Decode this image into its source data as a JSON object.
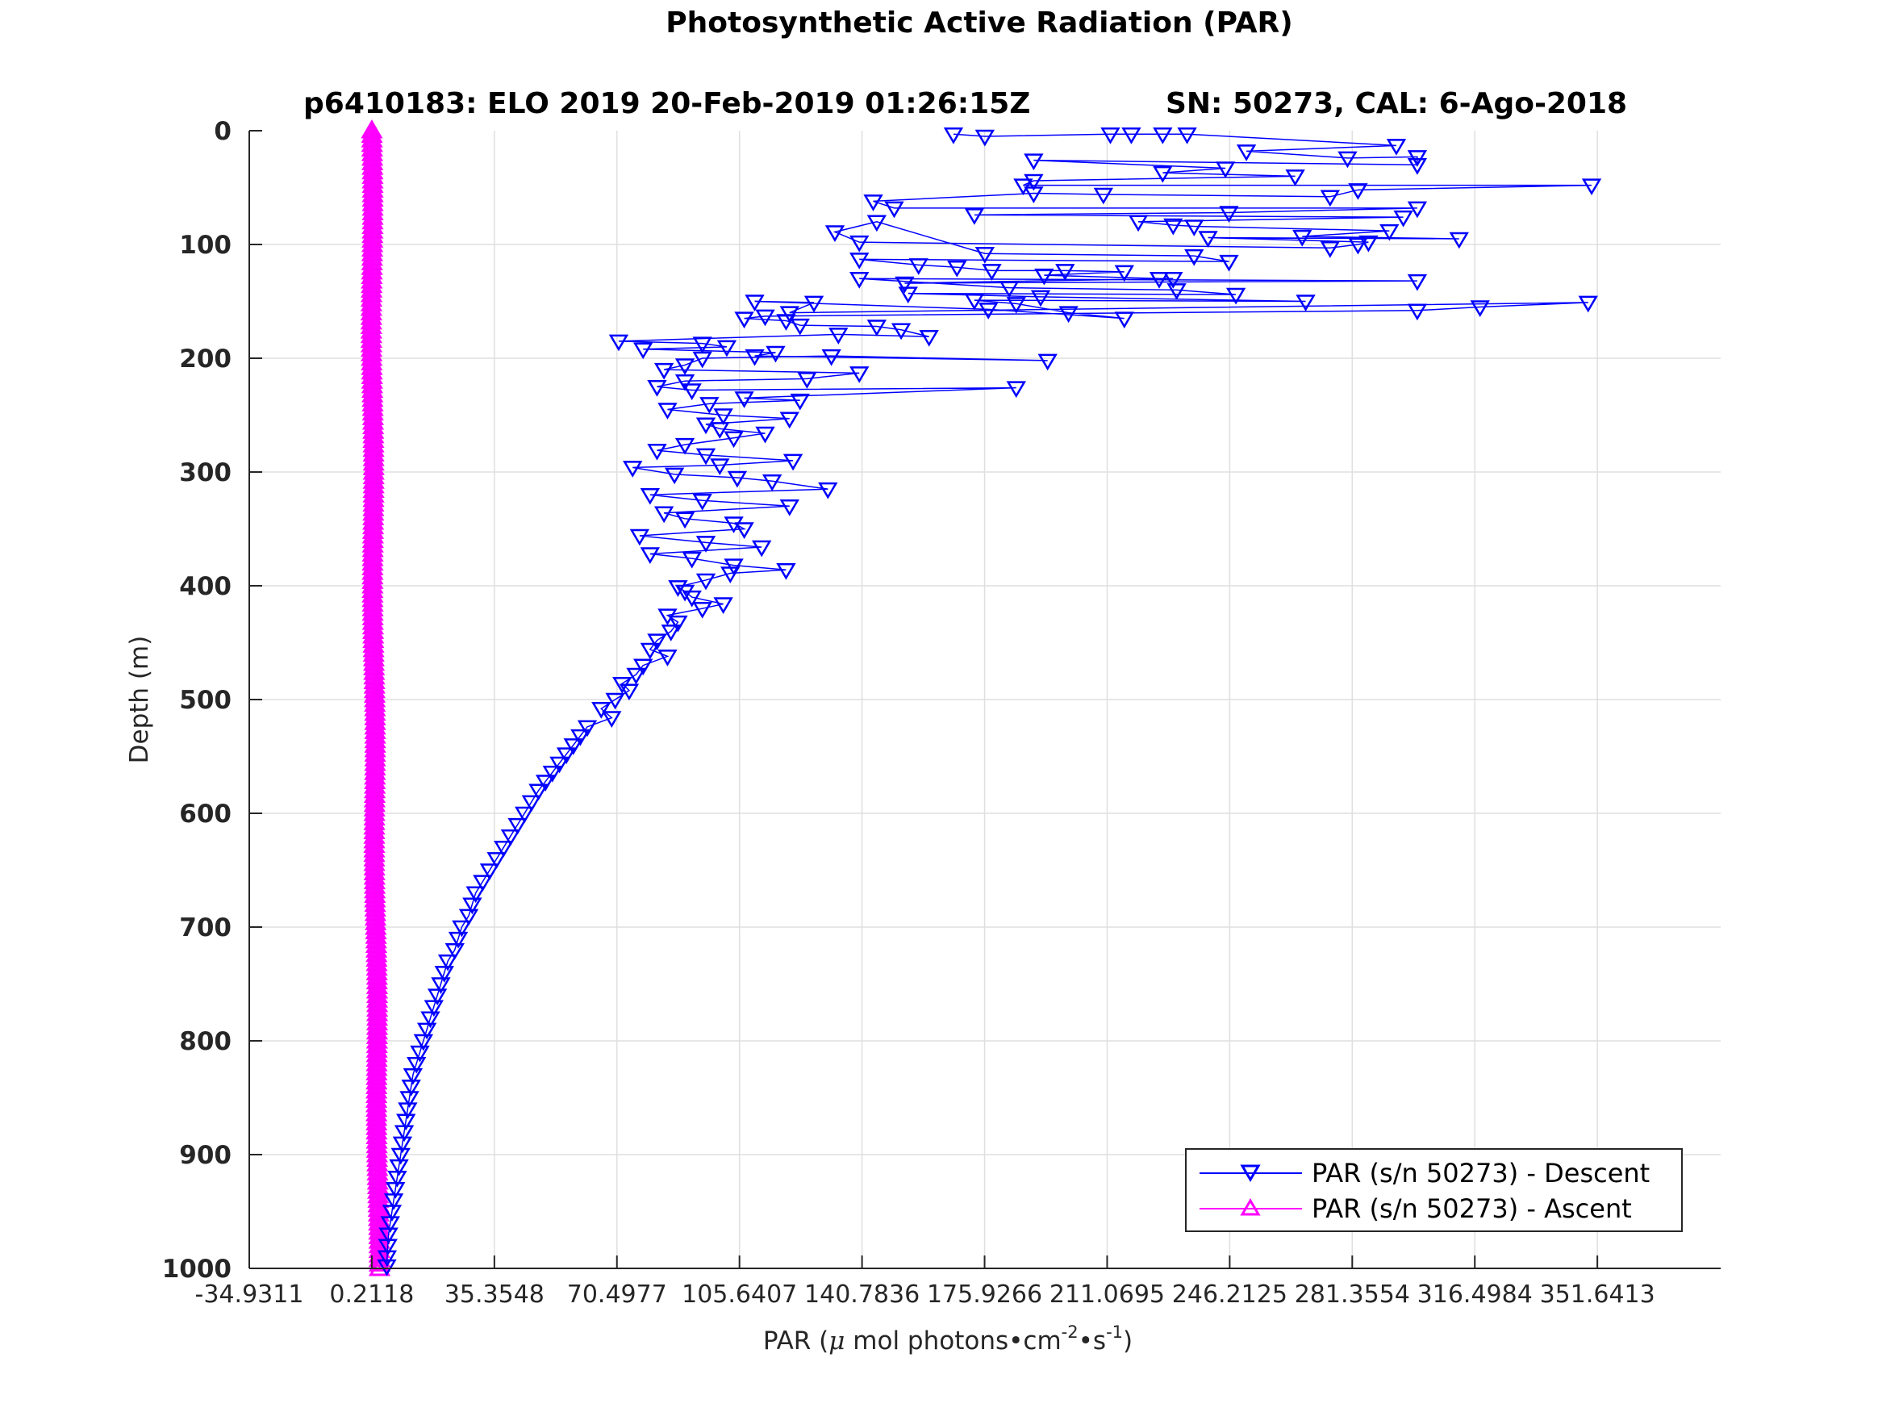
{
  "chart_data": {
    "type": "scatter",
    "title": "Photosynthetic Active Radiation (PAR)",
    "subtitle_left": "p6410183: ELO 2019 20-Feb-2019 01:26:15Z",
    "subtitle_right": "SN: 50273, CAL: 6-Ago-2018",
    "xlabel": "PAR (",
    "xlabel_mu": "μ",
    "xlabel_mid": " mol photons•cm",
    "xlabel_exp1": "-2",
    "xlabel_mid2": "•s",
    "xlabel_exp2": "-1",
    "xlabel_end": ")",
    "ylabel": "Depth (m)",
    "xlim": [
      -34.9311,
      387.0
    ],
    "ylim": [
      0,
      1000
    ],
    "y_reversed": true,
    "grid": true,
    "legend_position": "bottom-right",
    "xticks": [
      -34.9311,
      0.2118,
      35.3548,
      70.4977,
      105.6407,
      140.7836,
      175.9266,
      211.0695,
      246.2125,
      281.3554,
      316.4984,
      351.6413
    ],
    "xtick_labels": [
      "-34.9311",
      "0.2118",
      "35.3548",
      "70.4977",
      "105.6407",
      "140.7836",
      "175.9266",
      "211.0695",
      "246.2125",
      "281.3554",
      "316.4984",
      "351.6413"
    ],
    "yticks": [
      0,
      100,
      200,
      300,
      400,
      500,
      600,
      700,
      800,
      900,
      1000
    ],
    "ytick_labels": [
      "0",
      "100",
      "200",
      "300",
      "400",
      "500",
      "600",
      "700",
      "800",
      "900",
      "1000"
    ],
    "series": [
      {
        "name": "PAR (s/n 50273) - Descent",
        "color": "#0000ff",
        "marker": "triangle-down",
        "points": [
          [
            167,
            3
          ],
          [
            176,
            5
          ],
          [
            212,
            3
          ],
          [
            218,
            3
          ],
          [
            227,
            3
          ],
          [
            234,
            3
          ],
          [
            294,
            13
          ],
          [
            251,
            18
          ],
          [
            280,
            24
          ],
          [
            300,
            23
          ],
          [
            300,
            30
          ],
          [
            190,
            26
          ],
          [
            245,
            33
          ],
          [
            227,
            37
          ],
          [
            265,
            40
          ],
          [
            190,
            44
          ],
          [
            187,
            48
          ],
          [
            350,
            48
          ],
          [
            283,
            52
          ],
          [
            275,
            58
          ],
          [
            210,
            56
          ],
          [
            190,
            55
          ],
          [
            144,
            62
          ],
          [
            150,
            68
          ],
          [
            300,
            68
          ],
          [
            246,
            72
          ],
          [
            173,
            74
          ],
          [
            296,
            76
          ],
          [
            220,
            80
          ],
          [
            230,
            83
          ],
          [
            236,
            84
          ],
          [
            292,
            88
          ],
          [
            267,
            93
          ],
          [
            312,
            95
          ],
          [
            240,
            94
          ],
          [
            286,
            98
          ],
          [
            283,
            100
          ],
          [
            275,
            103
          ],
          [
            140,
            98
          ],
          [
            133,
            89
          ],
          [
            145,
            80
          ],
          [
            176,
            108
          ],
          [
            236,
            110
          ],
          [
            246,
            115
          ],
          [
            140,
            113
          ],
          [
            157,
            118
          ],
          [
            168,
            120
          ],
          [
            178,
            123
          ],
          [
            199,
            123
          ],
          [
            216,
            124
          ],
          [
            193,
            127
          ],
          [
            226,
            130
          ],
          [
            230,
            130
          ],
          [
            153,
            134
          ],
          [
            300,
            132
          ],
          [
            140,
            130
          ],
          [
            183,
            138
          ],
          [
            231,
            140
          ],
          [
            248,
            144
          ],
          [
            154,
            143
          ],
          [
            192,
            146
          ],
          [
            268,
            150
          ],
          [
            173,
            149
          ],
          [
            185,
            152
          ],
          [
            200,
            160
          ],
          [
            216,
            165
          ],
          [
            177,
            157
          ],
          [
            110,
            150
          ],
          [
            127,
            151
          ],
          [
            120,
            160
          ],
          [
            349,
            151
          ],
          [
            318,
            155
          ],
          [
            300,
            158
          ],
          [
            113,
            163
          ],
          [
            107,
            165
          ],
          [
            119,
            167
          ],
          [
            123,
            171
          ],
          [
            145,
            172
          ],
          [
            152,
            175
          ],
          [
            160,
            181
          ],
          [
            134,
            179
          ],
          [
            71,
            185
          ],
          [
            95,
            187
          ],
          [
            102,
            190
          ],
          [
            78,
            192
          ],
          [
            116,
            195
          ],
          [
            110,
            198
          ],
          [
            194,
            202
          ],
          [
            132,
            198
          ],
          [
            95,
            200
          ],
          [
            90,
            206
          ],
          [
            84,
            210
          ],
          [
            140,
            213
          ],
          [
            125,
            218
          ],
          [
            90,
            220
          ],
          [
            82,
            225
          ],
          [
            92,
            228
          ],
          [
            185,
            226
          ],
          [
            107,
            235
          ],
          [
            123,
            237
          ],
          [
            97,
            240
          ],
          [
            85,
            245
          ],
          [
            101,
            250
          ],
          [
            120,
            253
          ],
          [
            96,
            258
          ],
          [
            100,
            262
          ],
          [
            113,
            266
          ],
          [
            104,
            270
          ],
          [
            90,
            276
          ],
          [
            82,
            281
          ],
          [
            96,
            285
          ],
          [
            121,
            290
          ],
          [
            100,
            294
          ],
          [
            75,
            296
          ],
          [
            87,
            302
          ],
          [
            105,
            305
          ],
          [
            115,
            308
          ],
          [
            131,
            315
          ],
          [
            80,
            320
          ],
          [
            95,
            325
          ],
          [
            120,
            330
          ],
          [
            84,
            336
          ],
          [
            90,
            341
          ],
          [
            104,
            345
          ],
          [
            107,
            350
          ],
          [
            77,
            356
          ],
          [
            96,
            362
          ],
          [
            112,
            366
          ],
          [
            80,
            372
          ],
          [
            92,
            376
          ],
          [
            104,
            382
          ],
          [
            119,
            386
          ],
          [
            103,
            389
          ],
          [
            96,
            395
          ],
          [
            88,
            401
          ],
          [
            90,
            405
          ],
          [
            92,
            410
          ],
          [
            101,
            416
          ],
          [
            95,
            420
          ],
          [
            85,
            426
          ],
          [
            88,
            432
          ],
          [
            86,
            440
          ],
          [
            82,
            448
          ],
          [
            80,
            456
          ],
          [
            85,
            462
          ],
          [
            78,
            470
          ],
          [
            76,
            478
          ],
          [
            72,
            486
          ],
          [
            74,
            492
          ],
          [
            70,
            500
          ],
          [
            66,
            508
          ],
          [
            69,
            516
          ],
          [
            62,
            524
          ],
          [
            60,
            532
          ],
          [
            58,
            540
          ],
          [
            56,
            548
          ],
          [
            54,
            556
          ],
          [
            52,
            564
          ],
          [
            50,
            572
          ],
          [
            48,
            580
          ],
          [
            46,
            590
          ],
          [
            44,
            600
          ],
          [
            42,
            610
          ],
          [
            40,
            620
          ],
          [
            38,
            630
          ],
          [
            36,
            640
          ],
          [
            34,
            650
          ],
          [
            32,
            660
          ],
          [
            30,
            670
          ],
          [
            29,
            680
          ],
          [
            28,
            690
          ],
          [
            26,
            700
          ],
          [
            25,
            710
          ],
          [
            24,
            720
          ],
          [
            22,
            730
          ],
          [
            21,
            740
          ],
          [
            20,
            750
          ],
          [
            19,
            760
          ],
          [
            18,
            770
          ],
          [
            17,
            780
          ],
          [
            16,
            790
          ],
          [
            15,
            800
          ],
          [
            14,
            810
          ],
          [
            13,
            820
          ],
          [
            12,
            830
          ],
          [
            11.5,
            840
          ],
          [
            11,
            850
          ],
          [
            10.5,
            860
          ],
          [
            10,
            870
          ],
          [
            9.5,
            880
          ],
          [
            9,
            890
          ],
          [
            8.5,
            900
          ],
          [
            8,
            910
          ],
          [
            7.5,
            920
          ],
          [
            7,
            930
          ],
          [
            6.5,
            940
          ],
          [
            6,
            950
          ],
          [
            5.5,
            960
          ],
          [
            5,
            970
          ],
          [
            4.8,
            980
          ],
          [
            4.6,
            990
          ],
          [
            4.5,
            998
          ]
        ]
      },
      {
        "name": "PAR (s/n 50273) - Ascent",
        "color": "#ff00ff",
        "marker": "triangle-up",
        "depth_range": [
          0,
          1000
        ],
        "x_start": 0.2118,
        "x_end": 2.2
      }
    ]
  }
}
